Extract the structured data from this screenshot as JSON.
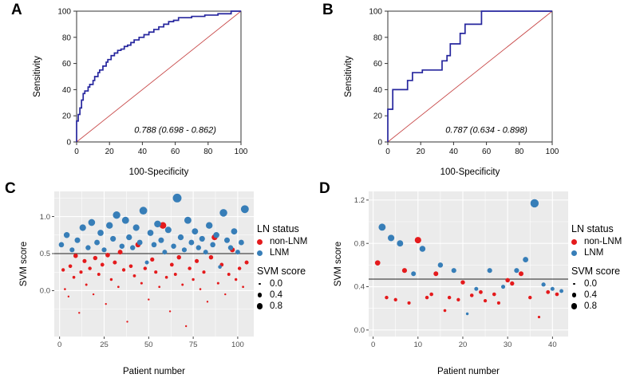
{
  "figure_bg": "#ffffff",
  "chart_data": [
    {
      "type": "line",
      "subtype": "roc",
      "panel_label": "A",
      "title": "",
      "xlabel": "100-Specificity",
      "ylabel": "Sensitivity",
      "xlim": [
        0,
        100
      ],
      "ylim": [
        0,
        100
      ],
      "ticks": [
        0,
        20,
        40,
        60,
        80,
        100
      ],
      "annotation": "0.788 (0.698 - 0.862)",
      "curve_color": "#26269E",
      "ref_color": "#C84A4A",
      "frame_color": "#333333",
      "roc_points": [
        [
          0,
          0
        ],
        [
          0,
          16
        ],
        [
          1,
          21
        ],
        [
          2,
          26
        ],
        [
          3,
          32
        ],
        [
          4,
          37
        ],
        [
          5,
          39
        ],
        [
          7,
          42
        ],
        [
          8,
          44
        ],
        [
          10,
          47
        ],
        [
          11,
          50
        ],
        [
          13,
          53
        ],
        [
          14,
          55
        ],
        [
          16,
          58
        ],
        [
          18,
          61
        ],
        [
          19,
          63
        ],
        [
          21,
          66
        ],
        [
          23,
          68
        ],
        [
          25,
          70
        ],
        [
          27,
          71
        ],
        [
          29,
          73
        ],
        [
          31,
          74
        ],
        [
          33,
          76
        ],
        [
          35,
          78
        ],
        [
          38,
          80
        ],
        [
          41,
          82
        ],
        [
          44,
          84
        ],
        [
          47,
          86
        ],
        [
          50,
          88
        ],
        [
          53,
          90
        ],
        [
          56,
          92
        ],
        [
          59,
          93
        ],
        [
          62,
          95
        ],
        [
          70,
          96
        ],
        [
          78,
          97
        ],
        [
          86,
          98
        ],
        [
          90,
          98
        ],
        [
          94,
          100
        ],
        [
          100,
          100
        ]
      ]
    },
    {
      "type": "line",
      "subtype": "roc",
      "panel_label": "B",
      "title": "",
      "xlabel": "100-Specificity",
      "ylabel": "Sensitivity",
      "xlim": [
        0,
        100
      ],
      "ylim": [
        0,
        100
      ],
      "ticks": [
        0,
        20,
        40,
        60,
        80,
        100
      ],
      "annotation": "0.787 (0.634 - 0.898)",
      "curve_color": "#26269E",
      "ref_color": "#C84A4A",
      "frame_color": "#333333",
      "roc_points": [
        [
          0,
          0
        ],
        [
          0,
          25
        ],
        [
          3,
          27
        ],
        [
          3,
          40
        ],
        [
          12,
          40
        ],
        [
          12,
          47
        ],
        [
          15,
          47
        ],
        [
          15,
          53
        ],
        [
          21,
          53
        ],
        [
          21,
          55
        ],
        [
          33,
          55
        ],
        [
          33,
          62
        ],
        [
          36,
          62
        ],
        [
          36,
          66
        ],
        [
          38,
          66
        ],
        [
          38,
          75
        ],
        [
          44,
          75
        ],
        [
          44,
          83
        ],
        [
          47,
          83
        ],
        [
          47,
          90
        ],
        [
          57,
          90
        ],
        [
          57,
          100
        ],
        [
          62,
          100
        ],
        [
          100,
          100
        ]
      ]
    },
    {
      "type": "scatter",
      "panel_label": "C",
      "xlabel": "Patient number",
      "ylabel": "SVM score",
      "xlim": [
        -3,
        109
      ],
      "ylim": [
        -0.62,
        1.34
      ],
      "xticks": [
        0,
        25,
        50,
        75,
        100
      ],
      "yticks": [
        0.0,
        0.5,
        1.0
      ],
      "ytick_labels": [
        "0.0",
        "0.5",
        "1.0"
      ],
      "threshold": 0.5,
      "panel_bg": "#EBEBEB",
      "grid_color": "#FFFFFF",
      "threshold_color": "#222222",
      "legend": {
        "title": "LN status",
        "items": [
          {
            "label": "non-LNM",
            "color": "#E41A1C"
          },
          {
            "label": "LNM",
            "color": "#377EB8"
          }
        ]
      },
      "size_legend": {
        "title": "SVM score",
        "values": [
          0.0,
          0.4,
          0.8
        ],
        "labels": [
          "0.0",
          "0.4",
          "0.8"
        ]
      },
      "series": [
        {
          "name": "non-LNM",
          "color": "#E41A1C",
          "points": [
            [
              2,
              0.28
            ],
            [
              3,
              0.02
            ],
            [
              5,
              -0.08
            ],
            [
              6,
              0.33
            ],
            [
              8,
              0.18
            ],
            [
              9,
              0.47
            ],
            [
              11,
              -0.3
            ],
            [
              12,
              0.25
            ],
            [
              14,
              0.4
            ],
            [
              15,
              0.08
            ],
            [
              17,
              0.3
            ],
            [
              19,
              -0.05
            ],
            [
              20,
              0.44
            ],
            [
              22,
              0.22
            ],
            [
              24,
              0.35
            ],
            [
              26,
              -0.18
            ],
            [
              27,
              0.48
            ],
            [
              29,
              0.15
            ],
            [
              31,
              0.38
            ],
            [
              33,
              0.05
            ],
            [
              34,
              0.52
            ],
            [
              36,
              0.28
            ],
            [
              38,
              -0.42
            ],
            [
              40,
              0.33
            ],
            [
              42,
              0.2
            ],
            [
              44,
              0.62
            ],
            [
              46,
              0.1
            ],
            [
              48,
              0.3
            ],
            [
              50,
              -0.12
            ],
            [
              52,
              0.42
            ],
            [
              54,
              0.25
            ],
            [
              56,
              0.05
            ],
            [
              58,
              0.88
            ],
            [
              60,
              0.18
            ],
            [
              62,
              -0.28
            ],
            [
              63,
              0.35
            ],
            [
              65,
              0.22
            ],
            [
              67,
              0.45
            ],
            [
              69,
              0.08
            ],
            [
              71,
              -0.48
            ],
            [
              73,
              0.3
            ],
            [
              75,
              0.15
            ],
            [
              77,
              0.4
            ],
            [
              79,
              0.02
            ],
            [
              81,
              0.25
            ],
            [
              83,
              -0.15
            ],
            [
              85,
              0.45
            ],
            [
              87,
              0.72
            ],
            [
              89,
              0.1
            ],
            [
              91,
              0.35
            ],
            [
              93,
              -0.05
            ],
            [
              95,
              0.22
            ],
            [
              97,
              0.55
            ],
            [
              99,
              0.15
            ],
            [
              101,
              0.3
            ],
            [
              103,
              0.05
            ],
            [
              105,
              0.38
            ]
          ]
        },
        {
          "name": "LNM",
          "color": "#377EB8",
          "points": [
            [
              1,
              0.62
            ],
            [
              4,
              0.75
            ],
            [
              7,
              0.55
            ],
            [
              10,
              0.68
            ],
            [
              13,
              0.85
            ],
            [
              16,
              0.58
            ],
            [
              18,
              0.92
            ],
            [
              21,
              0.65
            ],
            [
              23,
              0.78
            ],
            [
              25,
              0.55
            ],
            [
              28,
              0.88
            ],
            [
              30,
              0.7
            ],
            [
              32,
              1.02
            ],
            [
              35,
              0.6
            ],
            [
              37,
              0.95
            ],
            [
              39,
              0.72
            ],
            [
              41,
              0.58
            ],
            [
              43,
              0.85
            ],
            [
              45,
              0.65
            ],
            [
              47,
              1.08
            ],
            [
              49,
              0.38
            ],
            [
              51,
              0.78
            ],
            [
              53,
              0.62
            ],
            [
              55,
              0.9
            ],
            [
              57,
              0.68
            ],
            [
              59,
              0.52
            ],
            [
              61,
              0.82
            ],
            [
              64,
              0.6
            ],
            [
              66,
              1.25
            ],
            [
              68,
              0.72
            ],
            [
              70,
              0.55
            ],
            [
              72,
              0.95
            ],
            [
              74,
              0.65
            ],
            [
              76,
              0.8
            ],
            [
              78,
              0.58
            ],
            [
              80,
              0.7
            ],
            [
              82,
              0.52
            ],
            [
              84,
              0.88
            ],
            [
              86,
              0.62
            ],
            [
              88,
              0.75
            ],
            [
              90,
              0.32
            ],
            [
              92,
              1.05
            ],
            [
              94,
              0.68
            ],
            [
              96,
              0.58
            ],
            [
              98,
              0.8
            ],
            [
              100,
              0.52
            ],
            [
              102,
              0.65
            ],
            [
              104,
              1.1
            ]
          ]
        }
      ]
    },
    {
      "type": "scatter",
      "panel_label": "D",
      "xlabel": "Patient number",
      "ylabel": "SVM score",
      "xlim": [
        -1,
        43.5
      ],
      "ylim": [
        -0.06,
        1.28
      ],
      "xticks": [
        0,
        10,
        20,
        30,
        40
      ],
      "yticks": [
        0.0,
        0.4,
        0.8,
        1.2
      ],
      "ytick_labels": [
        "0.0",
        "0.4",
        "0.8",
        "1.2"
      ],
      "threshold": 0.47,
      "panel_bg": "#EBEBEB",
      "grid_color": "#FFFFFF",
      "threshold_color": "#222222",
      "legend": {
        "title": "LN status",
        "items": [
          {
            "label": "non-LNM",
            "color": "#E41A1C"
          },
          {
            "label": "LNM",
            "color": "#377EB8"
          }
        ]
      },
      "size_legend": {
        "title": "SVM score",
        "values": [
          0.0,
          0.4,
          0.8
        ],
        "labels": [
          "0.0",
          "0.4",
          "0.8"
        ]
      },
      "series": [
        {
          "name": "non-LNM",
          "color": "#E41A1C",
          "points": [
            [
              1,
              0.62
            ],
            [
              3,
              0.3
            ],
            [
              5,
              0.28
            ],
            [
              7,
              0.55
            ],
            [
              8,
              0.25
            ],
            [
              10,
              0.83
            ],
            [
              12,
              0.3
            ],
            [
              13,
              0.33
            ],
            [
              14,
              0.52
            ],
            [
              16,
              0.18
            ],
            [
              17,
              0.3
            ],
            [
              19,
              0.28
            ],
            [
              20,
              0.44
            ],
            [
              22,
              0.32
            ],
            [
              24,
              0.35
            ],
            [
              25,
              0.27
            ],
            [
              27,
              0.33
            ],
            [
              28,
              0.25
            ],
            [
              30,
              0.46
            ],
            [
              31,
              0.43
            ],
            [
              33,
              0.52
            ],
            [
              35,
              0.3
            ],
            [
              37,
              0.12
            ],
            [
              39,
              0.35
            ],
            [
              41,
              0.33
            ]
          ]
        },
        {
          "name": "LNM",
          "color": "#377EB8",
          "points": [
            [
              2,
              0.95
            ],
            [
              4,
              0.85
            ],
            [
              6,
              0.8
            ],
            [
              9,
              0.52
            ],
            [
              11,
              0.75
            ],
            [
              15,
              0.6
            ],
            [
              18,
              0.55
            ],
            [
              21,
              0.15
            ],
            [
              23,
              0.38
            ],
            [
              26,
              0.55
            ],
            [
              29,
              0.4
            ],
            [
              32,
              0.55
            ],
            [
              34,
              0.65
            ],
            [
              36,
              1.17
            ],
            [
              38,
              0.42
            ],
            [
              40,
              0.38
            ],
            [
              42,
              0.36
            ]
          ]
        }
      ]
    }
  ]
}
